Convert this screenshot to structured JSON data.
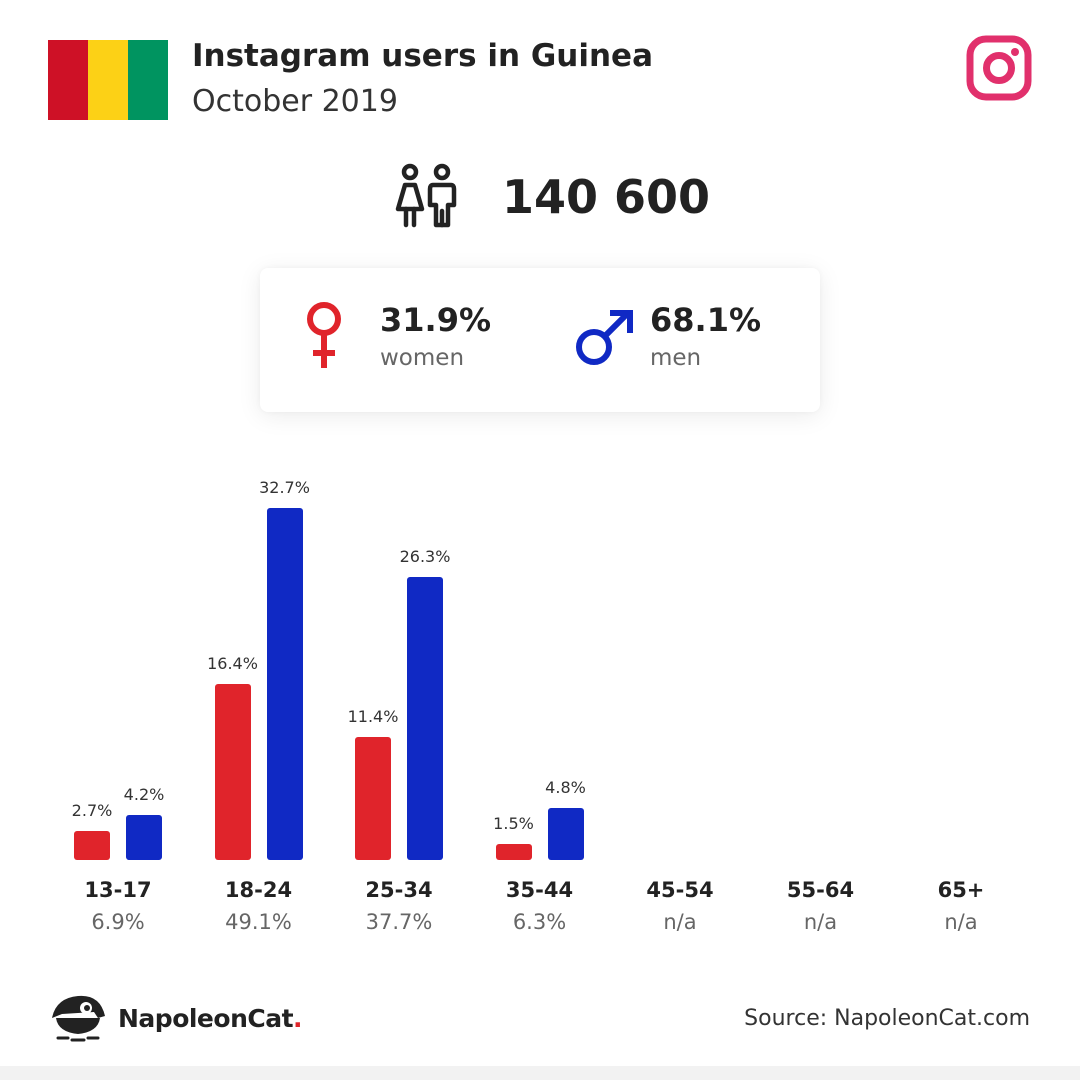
{
  "header": {
    "title": "Instagram users in Guinea",
    "subtitle": "October 2019",
    "flag_colors": [
      "#ce1126",
      "#fcd116",
      "#009460"
    ],
    "brand_icon": "instagram-icon",
    "brand_color": "#e1306c"
  },
  "total": {
    "icon": "people-icon",
    "value": "140 600"
  },
  "gender": {
    "women": {
      "pct": "31.9%",
      "label": "women",
      "icon": "female-symbol-icon",
      "color": "#e0242b"
    },
    "men": {
      "pct": "68.1%",
      "label": "men",
      "icon": "male-symbol-icon",
      "color": "#1029c4"
    }
  },
  "chart_data": {
    "type": "bar",
    "categories": [
      "13-17",
      "18-24",
      "25-34",
      "35-44",
      "45-54",
      "55-64",
      "65+"
    ],
    "category_totals": [
      "6.9%",
      "49.1%",
      "37.7%",
      "6.3%",
      "n/a",
      "n/a",
      "n/a"
    ],
    "series": [
      {
        "values": [
          2.7,
          16.4,
          11.4,
          1.5,
          null,
          null,
          null
        ],
        "labels": [
          "2.7%",
          "16.4%",
          "11.4%",
          "1.5%",
          "",
          "",
          ""
        ],
        "color": "#e0242b"
      },
      {
        "values": [
          4.2,
          32.7,
          26.3,
          4.8,
          null,
          null,
          null
        ],
        "labels": [
          "4.2%",
          "32.7%",
          "26.3%",
          "4.8%",
          "",
          "",
          ""
        ],
        "color": "#1029c4"
      }
    ]
  },
  "footer": {
    "logo_name": "NapoleonCat",
    "logo_dot": ".",
    "source": "Source: NapoleonCat.com"
  }
}
